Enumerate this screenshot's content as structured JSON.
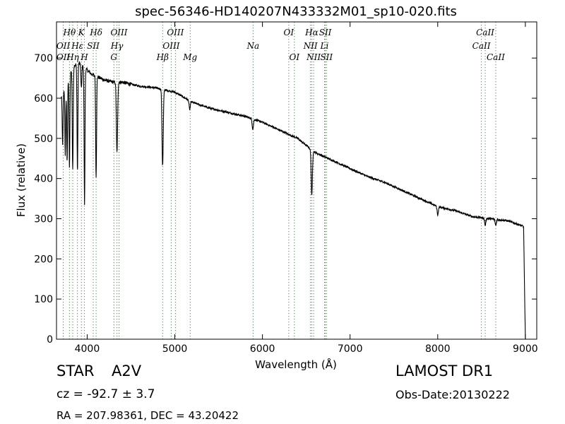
{
  "header": {
    "title": "spec-56346-HD140207N433332M01_sp10-020.fits"
  },
  "info": {
    "object_class": "STAR",
    "subclass": "A2V",
    "survey": "LAMOST DR1",
    "cz": "cz = -92.7 ± 3.7",
    "obs_date": "Obs-Date:20130222",
    "radec": "RA = 207.98361, DEC = 43.20422"
  },
  "chart_data": {
    "type": "line",
    "title": "spec-56346-HD140207N433332M01_sp10-020.fits",
    "xlabel": "Wavelength (Å)",
    "ylabel": "Flux (relative)",
    "xlim": [
      3650,
      9130
    ],
    "ylim": [
      0,
      790
    ],
    "grid": false,
    "xticks": [
      4000,
      5000,
      6000,
      7000,
      8000,
      9000
    ],
    "xtick_labels": [
      "4000",
      "5000",
      "6000",
      "7000",
      "8000",
      "9000"
    ],
    "yticks": [
      0,
      100,
      200,
      300,
      400,
      500,
      600,
      700
    ],
    "ytick_labels": [
      "0",
      "100",
      "200",
      "300",
      "400",
      "500",
      "600",
      "700"
    ],
    "line_color": "#000000",
    "marker_color": "#2ca02c",
    "continuum": [
      [
        3700,
        600
      ],
      [
        3750,
        630
      ],
      [
        3800,
        660
      ],
      [
        3850,
        680
      ],
      [
        3900,
        690
      ],
      [
        3950,
        680
      ],
      [
        4000,
        670
      ],
      [
        4050,
        660
      ],
      [
        4100,
        655
      ],
      [
        4150,
        650
      ],
      [
        4200,
        645
      ],
      [
        4300,
        640
      ],
      [
        4400,
        640
      ],
      [
        4500,
        635
      ],
      [
        4600,
        630
      ],
      [
        4700,
        628
      ],
      [
        4800,
        625
      ],
      [
        5000,
        615
      ],
      [
        5200,
        590
      ],
      [
        5400,
        575
      ],
      [
        5600,
        565
      ],
      [
        5800,
        555
      ],
      [
        6000,
        540
      ],
      [
        6200,
        520
      ],
      [
        6400,
        500
      ],
      [
        6600,
        465
      ],
      [
        6800,
        445
      ],
      [
        7000,
        425
      ],
      [
        7200,
        405
      ],
      [
        7400,
        390
      ],
      [
        7600,
        370
      ],
      [
        7800,
        350
      ],
      [
        8000,
        330
      ],
      [
        8200,
        320
      ],
      [
        8400,
        305
      ],
      [
        8600,
        300
      ],
      [
        8800,
        295
      ],
      [
        8950,
        283
      ],
      [
        8980,
        280
      ],
      [
        9000,
        0
      ]
    ],
    "absorption_lines": [
      {
        "wavelength": 3720,
        "depth": 130
      },
      {
        "wavelength": 3750,
        "depth": 170
      },
      {
        "wavelength": 3771,
        "depth": 200
      },
      {
        "wavelength": 3798,
        "depth": 230
      },
      {
        "wavelength": 3835,
        "depth": 250
      },
      {
        "wavelength": 3889,
        "depth": 270
      },
      {
        "wavelength": 3934,
        "depth": 60
      },
      {
        "wavelength": 3970,
        "depth": 340
      },
      {
        "wavelength": 4102,
        "depth": 250
      },
      {
        "wavelength": 4340,
        "depth": 175
      },
      {
        "wavelength": 4861,
        "depth": 190
      },
      {
        "wavelength": 5170,
        "depth": 22
      },
      {
        "wavelength": 5890,
        "depth": 25
      },
      {
        "wavelength": 6563,
        "depth": 115
      },
      {
        "wavelength": 8000,
        "depth": 20
      },
      {
        "wavelength": 8542,
        "depth": 18
      },
      {
        "wavelength": 8662,
        "depth": 15
      }
    ],
    "line_markers": [
      {
        "label": "Hθ",
        "wavelength": 3798,
        "level": 0
      },
      {
        "label": "OII",
        "wavelength": 3727,
        "level": 1
      },
      {
        "label": "OII",
        "wavelength": 3727,
        "level": 2
      },
      {
        "label": "Hη",
        "wavelength": 3835,
        "level": 2
      },
      {
        "label": "K",
        "wavelength": 3934,
        "level": 0
      },
      {
        "label": "Hε",
        "wavelength": 3889,
        "level": 1
      },
      {
        "label": "SII",
        "wavelength": 4069,
        "level": 1
      },
      {
        "label": "H",
        "wavelength": 3968,
        "level": 2
      },
      {
        "label": "Hδ",
        "wavelength": 4102,
        "level": 0
      },
      {
        "label": "OIII",
        "wavelength": 4363,
        "level": 0
      },
      {
        "label": "Hγ",
        "wavelength": 4340,
        "level": 1
      },
      {
        "label": "G",
        "wavelength": 4304,
        "level": 2
      },
      {
        "label": "OIII",
        "wavelength": 5007,
        "level": 0
      },
      {
        "label": "OIII",
        "wavelength": 4959,
        "level": 1
      },
      {
        "label": "Hβ",
        "wavelength": 4861,
        "level": 2
      },
      {
        "label": "Mg",
        "wavelength": 5175,
        "level": 2
      },
      {
        "label": "Na",
        "wavelength": 5893,
        "level": 1
      },
      {
        "label": "OI",
        "wavelength": 6300,
        "level": 0
      },
      {
        "label": "OI",
        "wavelength": 6364,
        "level": 2
      },
      {
        "label": "Hα",
        "wavelength": 6563,
        "level": 0
      },
      {
        "label": "SII",
        "wavelength": 6717,
        "level": 0
      },
      {
        "label": "NII",
        "wavelength": 6548,
        "level": 1
      },
      {
        "label": "Li",
        "wavelength": 6708,
        "level": 1
      },
      {
        "label": "NII",
        "wavelength": 6584,
        "level": 2
      },
      {
        "label": "SII",
        "wavelength": 6731,
        "level": 2
      },
      {
        "label": "CaII",
        "wavelength": 8542,
        "level": 0
      },
      {
        "label": "CaII",
        "wavelength": 8498,
        "level": 1
      },
      {
        "label": "CaII",
        "wavelength": 8662,
        "level": 2
      }
    ]
  }
}
